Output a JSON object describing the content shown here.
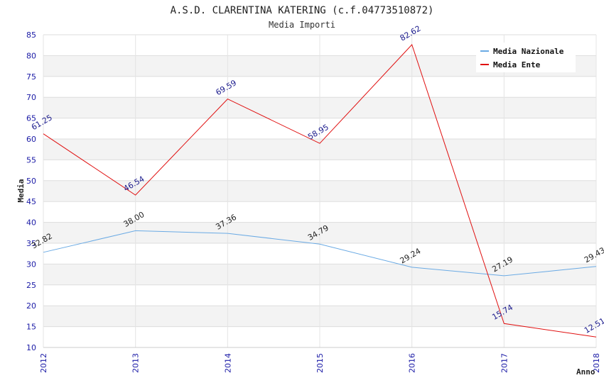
{
  "chart_data": {
    "type": "line",
    "title": "A.S.D. CLARENTINA KATERING (c.f.04773510872)",
    "subtitle": "Media Importi",
    "xlabel": "Anno",
    "ylabel": "Media",
    "categories": [
      "2012",
      "2013",
      "2014",
      "2015",
      "2016",
      "2017",
      "2018"
    ],
    "ylim": [
      10,
      85
    ],
    "yticks": [
      10,
      15,
      20,
      25,
      30,
      35,
      40,
      45,
      50,
      55,
      60,
      65,
      70,
      75,
      80,
      85
    ],
    "grid": true,
    "legend_position": "top-right",
    "series": [
      {
        "name": "Media Nazionale",
        "color": "#6aaae4",
        "values": [
          32.82,
          38.0,
          37.36,
          34.79,
          29.24,
          27.19,
          29.43
        ],
        "labels": [
          "32.82",
          "38.00",
          "37.36",
          "34.79",
          "29.24",
          "27.19",
          "29.43"
        ]
      },
      {
        "name": "Media Ente",
        "color": "#e01010",
        "values": [
          61.25,
          46.54,
          69.59,
          58.95,
          82.62,
          15.74,
          12.51
        ],
        "labels": [
          "61.25",
          "46.54",
          "69.59",
          "58.95",
          "82.62",
          "15.74",
          "12.51"
        ]
      }
    ]
  }
}
